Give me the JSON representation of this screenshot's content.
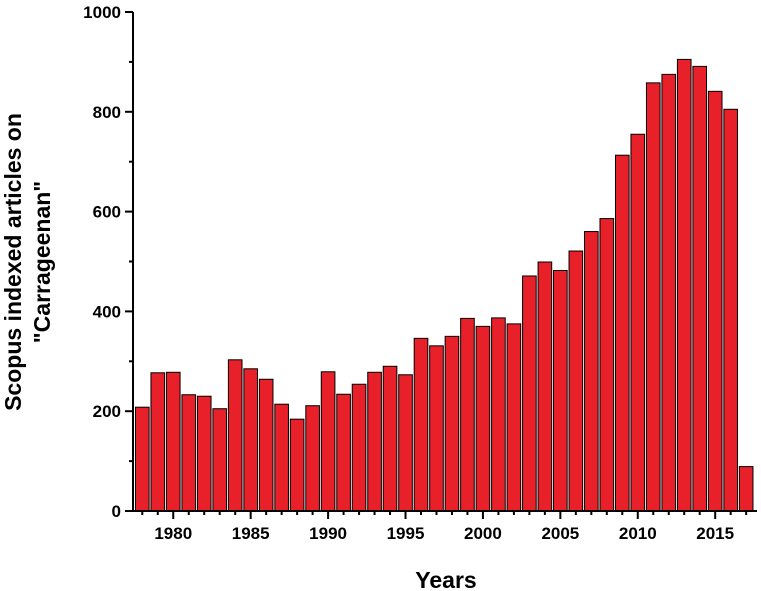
{
  "chart_data": {
    "type": "bar",
    "title": "",
    "xlabel": "Years",
    "ylabel_lines": [
      "Scopus indexed articles on",
      "\"Carrageenan\""
    ],
    "x": [
      1978,
      1979,
      1980,
      1981,
      1982,
      1983,
      1984,
      1985,
      1986,
      1987,
      1988,
      1989,
      1990,
      1991,
      1992,
      1993,
      1994,
      1995,
      1996,
      1997,
      1998,
      1999,
      2000,
      2001,
      2002,
      2003,
      2004,
      2005,
      2006,
      2007,
      2008,
      2009,
      2010,
      2011,
      2012,
      2013,
      2014,
      2015,
      2016,
      2017
    ],
    "values": [
      208,
      277,
      278,
      233,
      230,
      205,
      303,
      285,
      264,
      214,
      184,
      211,
      279,
      234,
      254,
      278,
      290,
      273,
      346,
      331,
      350,
      386,
      370,
      387,
      375,
      471,
      499,
      482,
      521,
      560,
      586,
      713,
      755,
      858,
      875,
      905,
      891,
      841,
      805,
      89
    ],
    "ylim": [
      0,
      1000
    ],
    "yticks": [
      0,
      200,
      400,
      600,
      800,
      1000
    ],
    "xticks": [
      1980,
      1985,
      1990,
      1995,
      2000,
      2005,
      2010,
      2015
    ],
    "xlim": [
      1977.4,
      2017.7
    ],
    "bar_color": "#e8202a",
    "grid": false
  }
}
